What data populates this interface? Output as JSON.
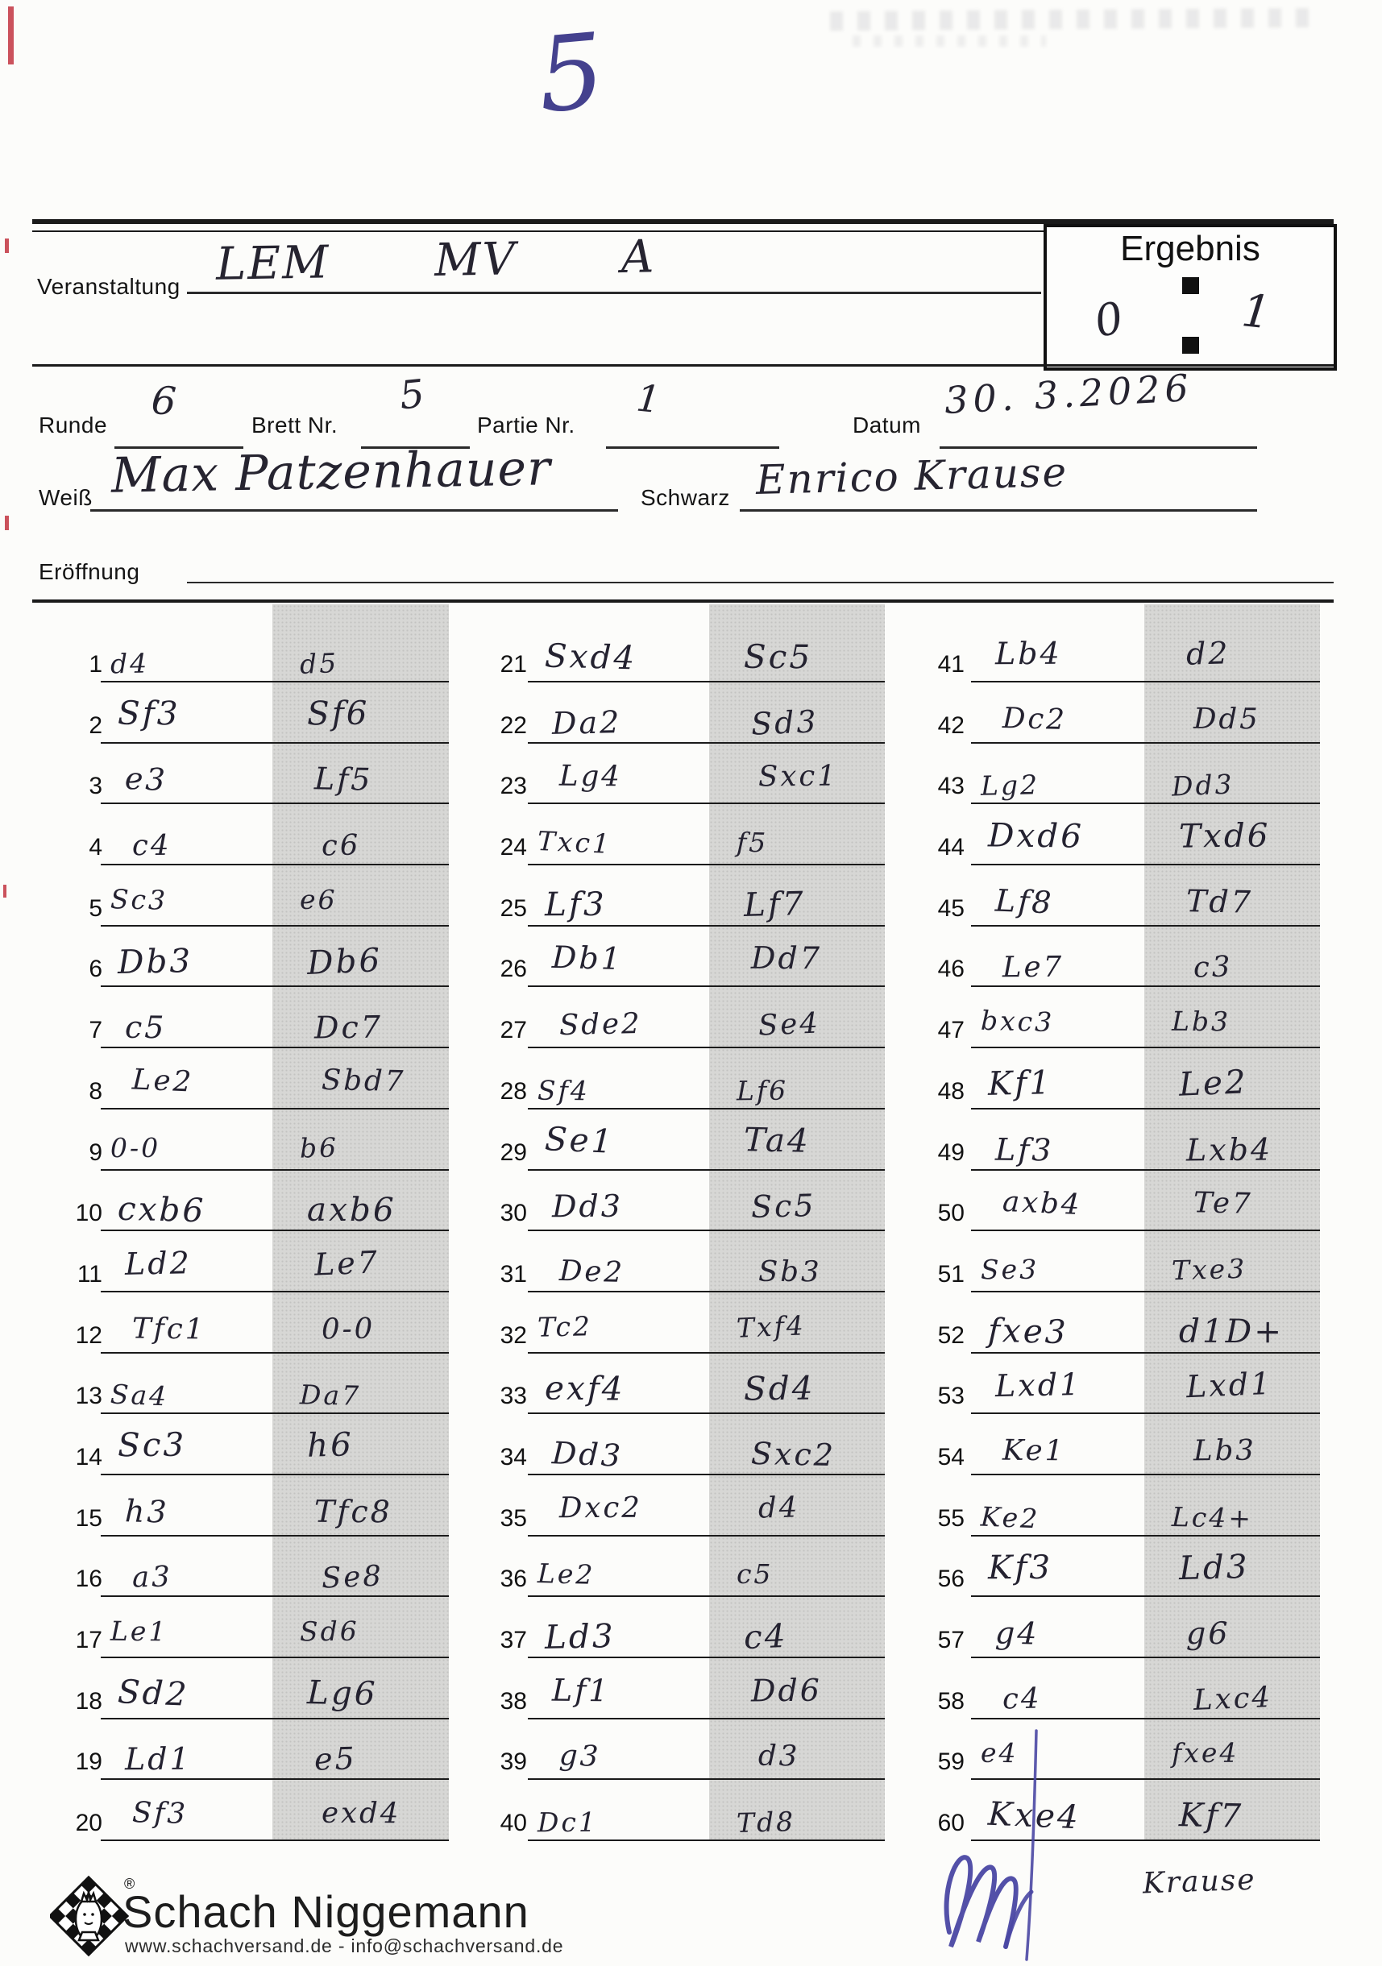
{
  "page": {
    "corner_number": "5"
  },
  "header": {
    "veranstaltung_label": "Veranstaltung",
    "veranstaltung_value": "LEM   MV   A"
  },
  "result": {
    "label": "Ergebnis",
    "white_score": "0",
    "black_score": "1"
  },
  "meta": {
    "runde_label": "Runde",
    "runde_value": "6",
    "brett_label": "Brett Nr.",
    "brett_value": "5",
    "partie_label": "Partie Nr.",
    "partie_value": "1",
    "datum_label": "Datum",
    "datum_value": "30. 3.2026",
    "weiss_label": "Weiß",
    "weiss_value": "Max Patzenhauer",
    "schwarz_label": "Schwarz",
    "schwarz_value": "Enrico Krause",
    "eroeffnung_label": "Eröffnung",
    "eroeffnung_value": ""
  },
  "moves": {
    "columns": [
      {
        "rows": [
          {
            "no": "1",
            "white": "d4",
            "black": "d5"
          },
          {
            "no": "2",
            "white": "Sf3",
            "black": "Sf6"
          },
          {
            "no": "3",
            "white": "e3",
            "black": "Lf5"
          },
          {
            "no": "4",
            "white": "c4",
            "black": "c6"
          },
          {
            "no": "5",
            "white": "Sc3",
            "black": "e6"
          },
          {
            "no": "6",
            "white": "Db3",
            "black": "Db6"
          },
          {
            "no": "7",
            "white": "c5",
            "black": "Dc7"
          },
          {
            "no": "8",
            "white": "Le2",
            "black": "Sbd7"
          },
          {
            "no": "9",
            "white": "0-0",
            "black": "b6"
          },
          {
            "no": "10",
            "white": "cxb6",
            "black": "axb6"
          },
          {
            "no": "11",
            "white": "Ld2",
            "black": "Le7"
          },
          {
            "no": "12",
            "white": "Tfc1",
            "black": "0-0"
          },
          {
            "no": "13",
            "white": "Sa4",
            "black": "Da7"
          },
          {
            "no": "14",
            "white": "Sc3",
            "black": "h6"
          },
          {
            "no": "15",
            "white": "h3",
            "black": "Tfc8"
          },
          {
            "no": "16",
            "white": "a3",
            "black": "Se8"
          },
          {
            "no": "17",
            "white": "Le1",
            "black": "Sd6"
          },
          {
            "no": "18",
            "white": "Sd2",
            "black": "Lg6"
          },
          {
            "no": "19",
            "white": "Ld1",
            "black": "e5"
          },
          {
            "no": "20",
            "white": "Sf3",
            "black": "exd4"
          }
        ]
      },
      {
        "rows": [
          {
            "no": "21",
            "white": "Sxd4",
            "black": "Sc5"
          },
          {
            "no": "22",
            "white": "Da2",
            "black": "Sd3"
          },
          {
            "no": "23",
            "white": "Lg4",
            "black": "Sxc1"
          },
          {
            "no": "24",
            "white": "Txc1",
            "black": "f5"
          },
          {
            "no": "25",
            "white": "Lf3",
            "black": "Lf7"
          },
          {
            "no": "26",
            "white": "Db1",
            "black": "Dd7"
          },
          {
            "no": "27",
            "white": "Sde2",
            "black": "Se4"
          },
          {
            "no": "28",
            "white": "Sf4",
            "black": "Lf6"
          },
          {
            "no": "29",
            "white": "Se1",
            "black": "Ta4"
          },
          {
            "no": "30",
            "white": "Dd3",
            "black": "Sc5"
          },
          {
            "no": "31",
            "white": "De2",
            "black": "Sb3"
          },
          {
            "no": "32",
            "white": "Tc2",
            "black": "Txf4"
          },
          {
            "no": "33",
            "white": "exf4",
            "black": "Sd4"
          },
          {
            "no": "34",
            "white": "Dd3",
            "black": "Sxc2"
          },
          {
            "no": "35",
            "white": "Dxc2",
            "black": "d4"
          },
          {
            "no": "36",
            "white": "Le2",
            "black": "c5"
          },
          {
            "no": "37",
            "white": "Ld3",
            "black": "c4"
          },
          {
            "no": "38",
            "white": "Lf1",
            "black": "Dd6"
          },
          {
            "no": "39",
            "white": "g3",
            "black": "d3"
          },
          {
            "no": "40",
            "white": "Dc1",
            "black": "Td8"
          }
        ]
      },
      {
        "rows": [
          {
            "no": "41",
            "white": "Lb4",
            "black": "d2"
          },
          {
            "no": "42",
            "white": "Dc2",
            "black": "Dd5"
          },
          {
            "no": "43",
            "white": "Lg2",
            "black": "Dd3"
          },
          {
            "no": "44",
            "white": "Dxd6",
            "black": "Txd6"
          },
          {
            "no": "45",
            "white": "Lf8",
            "black": "Td7"
          },
          {
            "no": "46",
            "white": "Le7",
            "black": "c3"
          },
          {
            "no": "47",
            "white": "bxc3",
            "black": "Lb3"
          },
          {
            "no": "48",
            "white": "Kf1",
            "black": "Le2"
          },
          {
            "no": "49",
            "white": "Lf3",
            "black": "Lxb4"
          },
          {
            "no": "50",
            "white": "axb4",
            "black": "Te7"
          },
          {
            "no": "51",
            "white": "Se3",
            "black": "Txe3"
          },
          {
            "no": "52",
            "white": "fxe3",
            "black": "d1D+"
          },
          {
            "no": "53",
            "white": "Lxd1",
            "black": "Lxd1"
          },
          {
            "no": "54",
            "white": "Ke1",
            "black": "Lb3"
          },
          {
            "no": "55",
            "white": "Ke2",
            "black": "Lc4+"
          },
          {
            "no": "56",
            "white": "Kf3",
            "black": "Ld3"
          },
          {
            "no": "57",
            "white": "g4",
            "black": "g6"
          },
          {
            "no": "58",
            "white": "c4",
            "black": "Lxc4"
          },
          {
            "no": "59",
            "white": "e4",
            "black": "fxe4"
          },
          {
            "no": "60",
            "white": "Kxe4",
            "black": "Kf7"
          }
        ]
      }
    ]
  },
  "footer": {
    "brand": "Schach Niggemann",
    "registered_mark": "®",
    "contact": "www.schachversand.de  -  info@schachversand.de",
    "handwritten_note": "Krause"
  }
}
